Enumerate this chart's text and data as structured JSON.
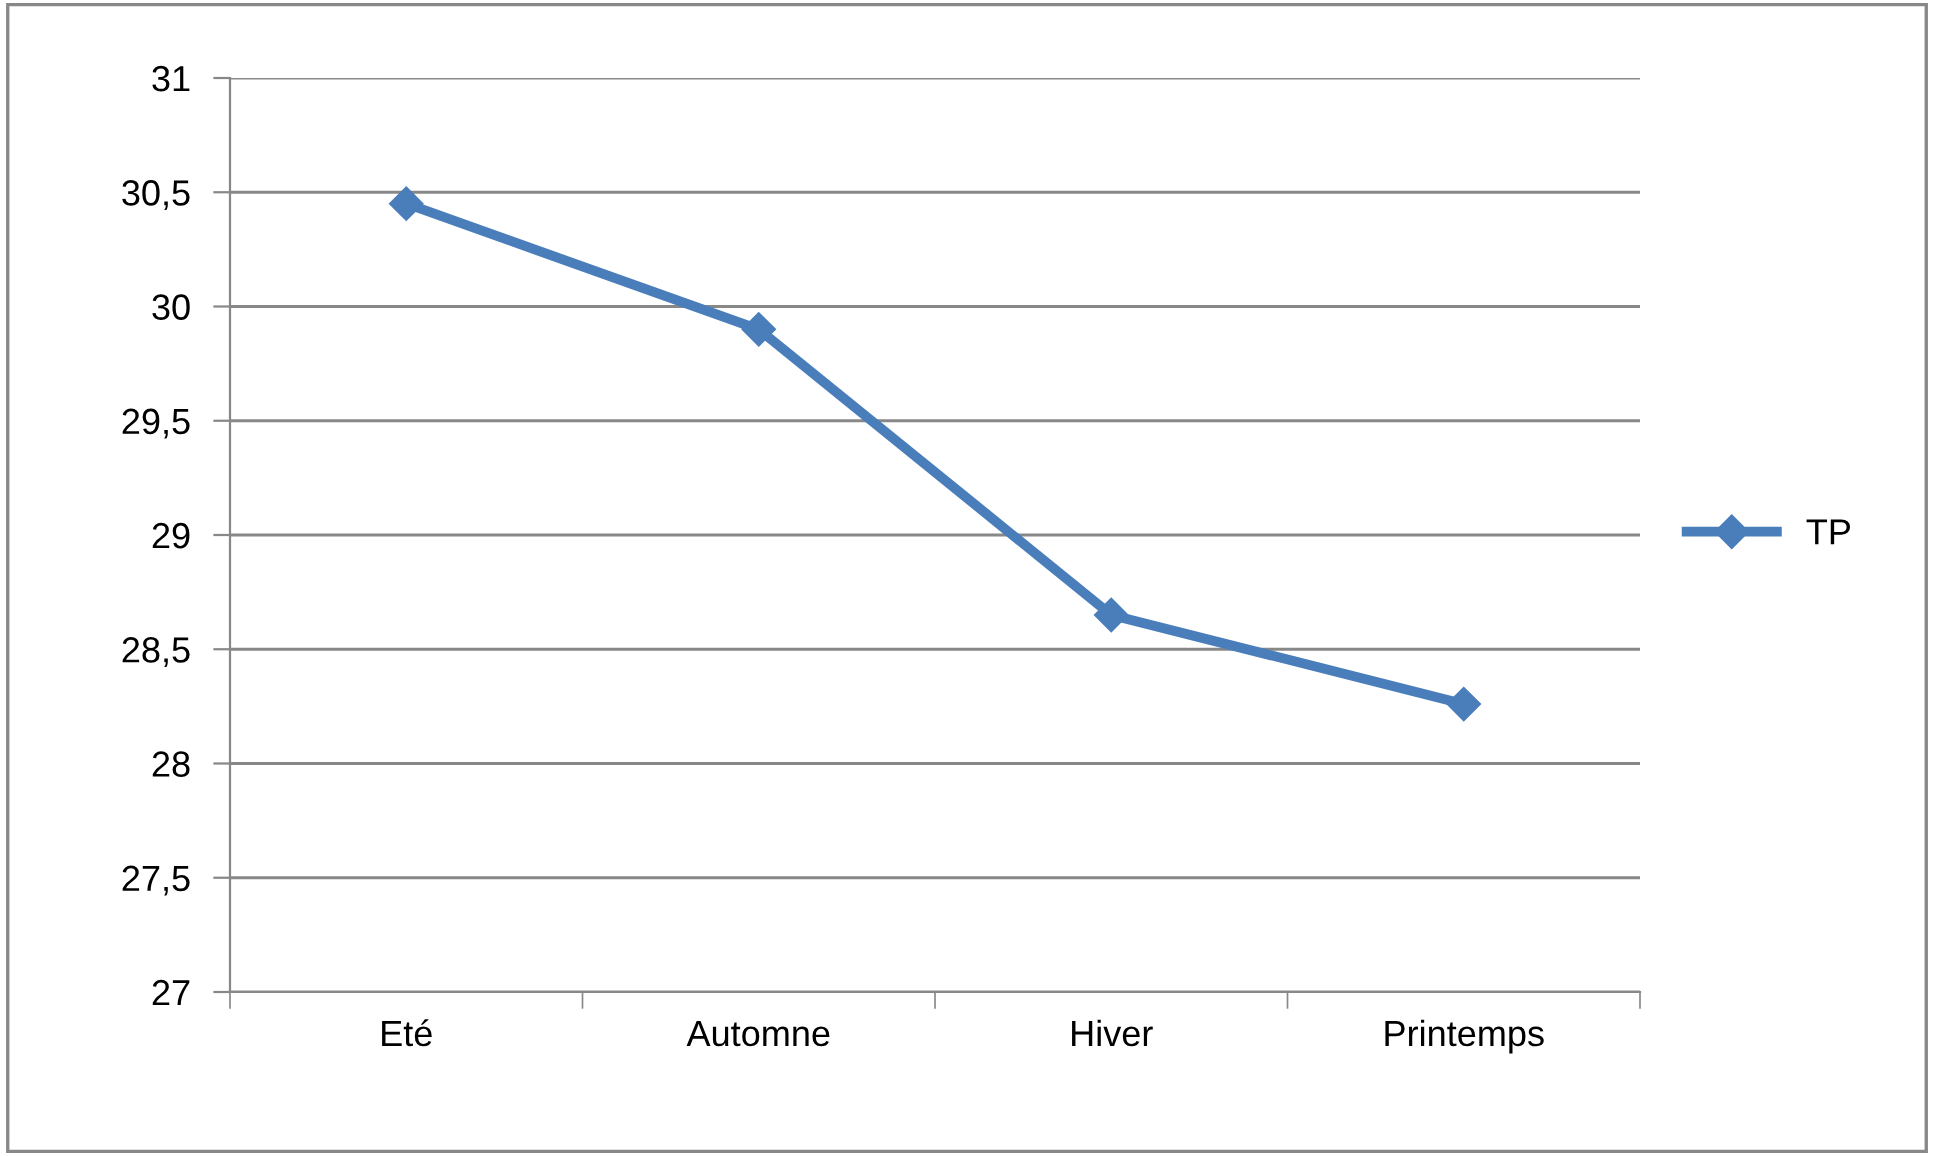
{
  "chart_data": {
    "type": "line",
    "categories": [
      "Eté",
      "Automne",
      "Hiver",
      "Printemps"
    ],
    "series": [
      {
        "name": "TP",
        "color": "#4a7ebb",
        "values": [
          30.45,
          29.9,
          28.65,
          28.26
        ]
      }
    ],
    "ylim": [
      27,
      31
    ],
    "yticks": [
      27,
      {
        "value": 27.5,
        "label": "27,5"
      },
      28,
      {
        "value": 28.5,
        "label": "28,5"
      },
      29,
      {
        "value": 29.5,
        "label": "29,5"
      },
      30,
      {
        "value": 30.5,
        "label": "30,5"
      },
      31
    ],
    "grid": "y",
    "legend": "right",
    "marker": "diamond",
    "line_style": "solid"
  }
}
